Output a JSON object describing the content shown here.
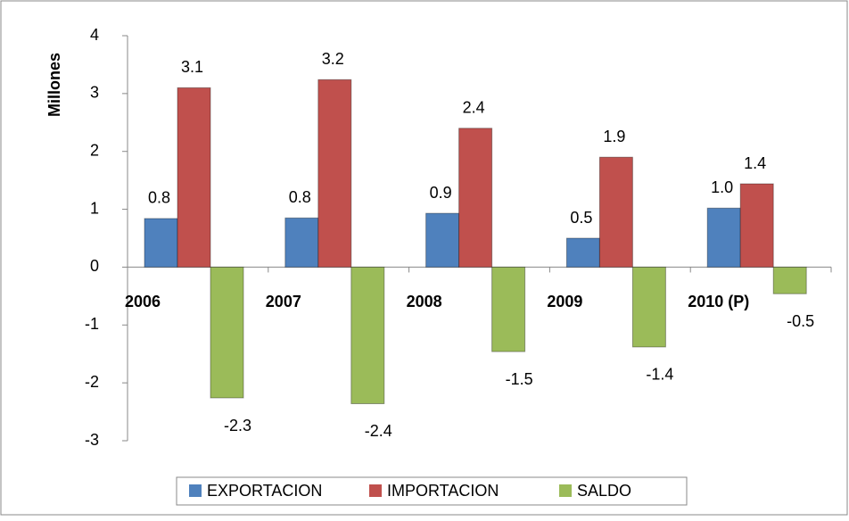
{
  "chart_data": {
    "type": "bar",
    "y_label": "Millones",
    "categories": [
      "2006",
      "2007",
      "2008",
      "2009",
      "2010 (P)"
    ],
    "series": [
      {
        "name": "EXPORTACION",
        "color": "#4f81bd",
        "values": [
          0.84,
          0.85,
          0.93,
          0.5,
          1.02
        ],
        "value_labels": [
          "0.8",
          "0.8",
          "0.9",
          "0.5",
          "1.0"
        ]
      },
      {
        "name": "IMPORTACION",
        "color": "#c0504d",
        "values": [
          3.1,
          3.24,
          2.4,
          1.9,
          1.44
        ],
        "value_labels": [
          "3.1",
          "3.2",
          "2.4",
          "1.9",
          "1.4"
        ]
      },
      {
        "name": "SALDO",
        "color": "#9bbb59",
        "values": [
          -2.26,
          -2.36,
          -1.46,
          -1.38,
          -0.46
        ],
        "value_labels": [
          "-2.3",
          "-2.4",
          "-1.5",
          "-1.4",
          "-0.5"
        ]
      }
    ],
    "ylim": [
      -3,
      4
    ],
    "yticks": [
      -3,
      -2,
      -1,
      0,
      1,
      2,
      3,
      4
    ],
    "legend": "bottom"
  }
}
